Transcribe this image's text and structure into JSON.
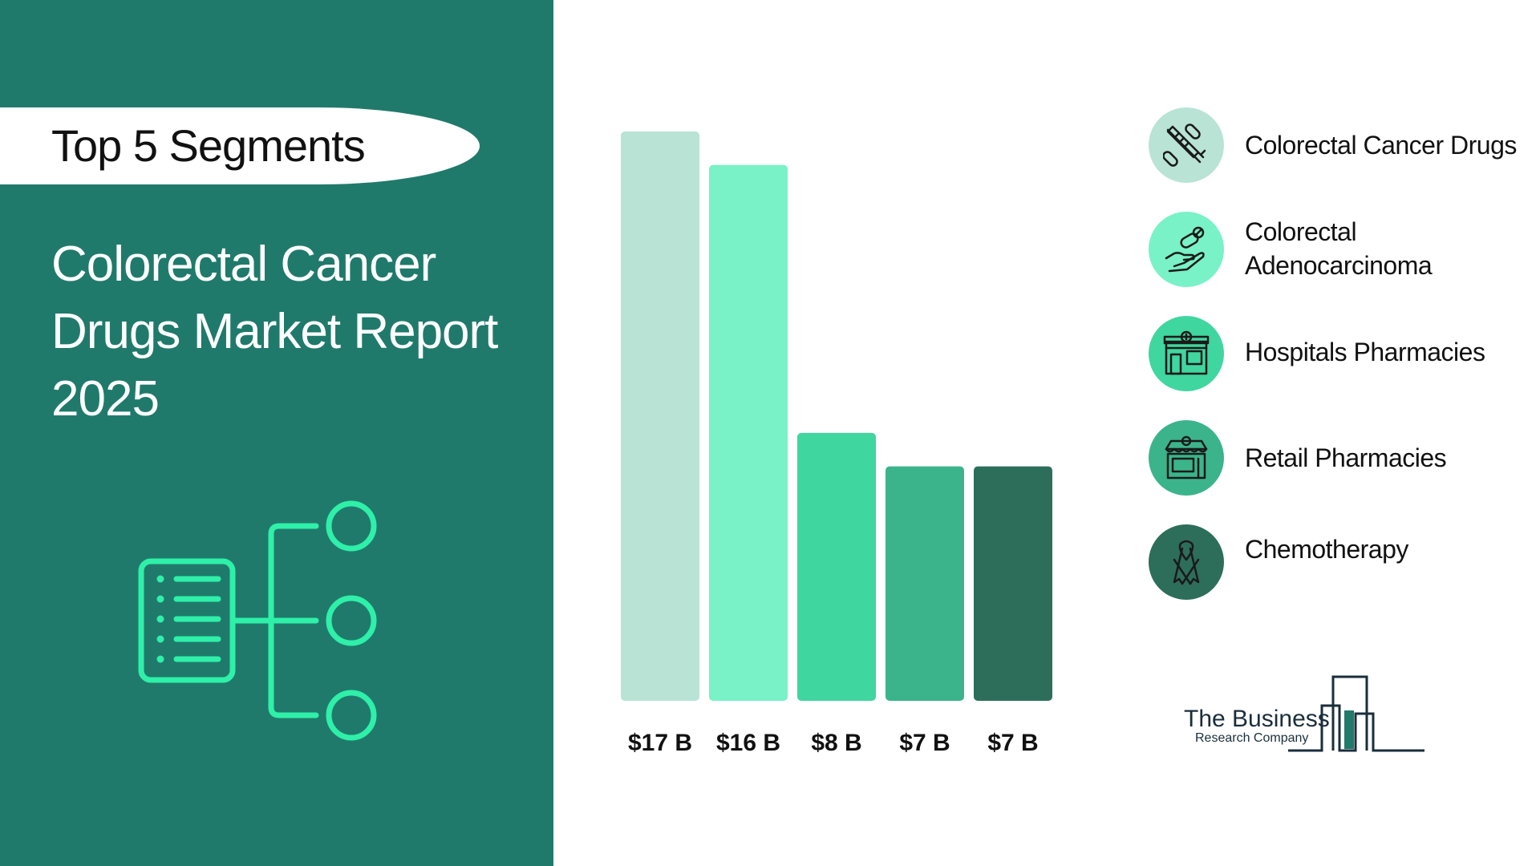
{
  "header": {
    "pill_title": "Top 5 Segments",
    "report_title": "Colorectal Cancer\nDrugs  Market Report\n2025"
  },
  "chart_data": {
    "type": "bar",
    "categories": [
      "Colorectal Cancer Drugs",
      "Colorectal Adenocarcinoma",
      "Hospitals Pharmacies",
      "Retail Pharmacies",
      "Chemotherapy"
    ],
    "values": [
      17,
      16,
      8,
      7,
      7
    ],
    "value_labels": [
      "$17 B",
      "$16 B",
      "$8 B",
      "$7 B",
      "$7 B"
    ],
    "colors": [
      "#b9e3d5",
      "#78f2c6",
      "#40d69f",
      "#3bb48b",
      "#2d6e5a"
    ],
    "ylim": [
      0,
      17
    ],
    "grid": false
  },
  "legend": {
    "items": [
      {
        "label": "Colorectal Cancer Drugs",
        "icon": "syringe-pills-icon",
        "color": "#b9e3d5"
      },
      {
        "label": "Colorectal Adenocarcinoma",
        "icon": "hand-pills-icon",
        "color": "#78f2c6"
      },
      {
        "label": "Hospitals Pharmacies",
        "icon": "pharmacy-building-icon",
        "color": "#40d69f"
      },
      {
        "label": "Retail Pharmacies",
        "icon": "storefront-icon",
        "color": "#3bb48b"
      },
      {
        "label": "Chemotherapy",
        "icon": "awareness-ribbon-icon",
        "color": "#2d6e5a"
      }
    ]
  },
  "logo": {
    "line1": "The Business",
    "line2": "Research Company",
    "accent": "#207a6b"
  }
}
